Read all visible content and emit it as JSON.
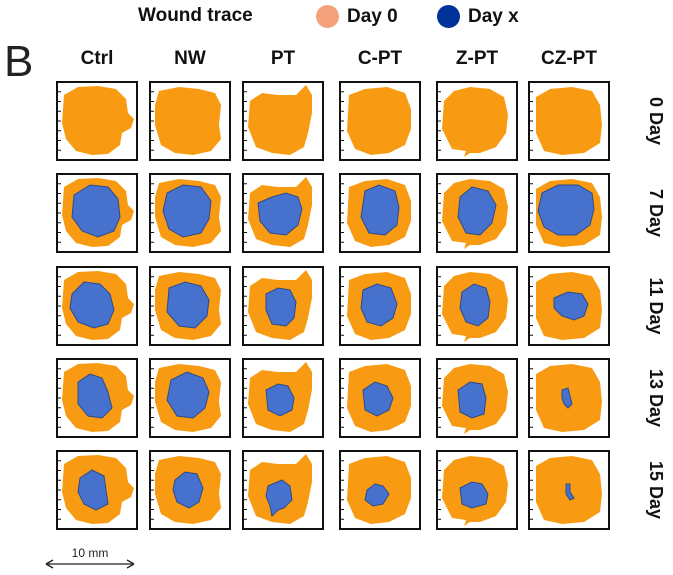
{
  "panel_letter": "B",
  "legend": {
    "title": "Wound trace",
    "items": [
      {
        "label": "Day 0",
        "color": "#F5A27C"
      },
      {
        "label": "Day x",
        "color": "#003399"
      }
    ]
  },
  "columns": [
    "Ctrl",
    "NW",
    "PT",
    "C-PT",
    "Z-PT",
    "CZ-PT"
  ],
  "rows": [
    "0 Day",
    "7 Day",
    "11 Day",
    "13 Day",
    "15 Day"
  ],
  "colors": {
    "wound_day0_fill": "#F99B12",
    "wound_dayx_fill": "#4671CC",
    "wound_dayx_stroke": "#2B4A8C",
    "frame": "#111111"
  },
  "scale_bar": {
    "label": "10 mm"
  }
}
